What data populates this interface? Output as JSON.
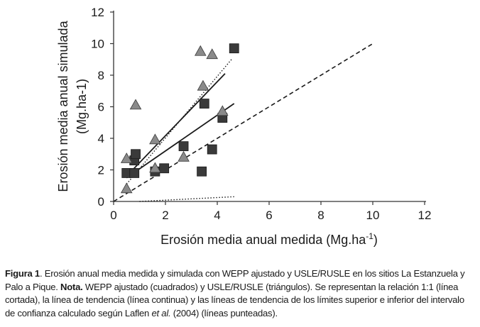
{
  "chart_data": {
    "type": "scatter",
    "title": "",
    "xlabel": "Erosión media anual medida (Mg.ha",
    "xlabel_sup": "-1",
    "xlabel_end": ")",
    "ylabel_line1": "Erosión media anual simulada",
    "ylabel_line2": "(Mg.ha-1)",
    "xlim": [
      0,
      12
    ],
    "ylim": [
      0,
      12
    ],
    "xticks": [
      "0",
      "2",
      "4",
      "6",
      "8",
      "10",
      "12"
    ],
    "yticks": [
      "0",
      "2",
      "4",
      "6",
      "8",
      "10",
      "12"
    ],
    "grid": false,
    "series": [
      {
        "name": "WEPP ajustado (cuadrados)",
        "marker": "square",
        "color": "#3a3a3a",
        "points": [
          [
            0.5,
            1.8
          ],
          [
            0.8,
            1.8
          ],
          [
            0.8,
            2.6
          ],
          [
            0.85,
            3.0
          ],
          [
            1.6,
            1.9
          ],
          [
            1.95,
            2.1
          ],
          [
            2.7,
            3.5
          ],
          [
            3.4,
            1.9
          ],
          [
            3.5,
            6.2
          ],
          [
            3.8,
            3.3
          ],
          [
            4.2,
            5.3
          ],
          [
            4.65,
            9.7
          ]
        ]
      },
      {
        "name": "USLE/RUSLE (triángulos)",
        "marker": "triangle",
        "color": "#8a8a8a",
        "points": [
          [
            0.5,
            0.8
          ],
          [
            0.5,
            2.7
          ],
          [
            0.85,
            6.1
          ],
          [
            1.6,
            2.1
          ],
          [
            1.6,
            3.9
          ],
          [
            2.7,
            2.8
          ],
          [
            3.35,
            9.5
          ],
          [
            3.45,
            7.3
          ],
          [
            3.8,
            9.3
          ],
          [
            4.2,
            5.7
          ]
        ]
      }
    ],
    "reference_lines": [
      {
        "name": "relación 1:1 (línea cortada)",
        "style": "dashed",
        "x": [
          0,
          10
        ],
        "y": [
          0,
          10
        ]
      },
      {
        "name": "línea de tendencia WEPP (línea continua)",
        "style": "solid",
        "x": [
          0.5,
          4.65
        ],
        "y": [
          1.5,
          6.2
        ]
      },
      {
        "name": "línea de tendencia USLE/RUSLE (línea continua)",
        "style": "solid",
        "x": [
          0.5,
          4.3
        ],
        "y": [
          1.6,
          8.1
        ]
      },
      {
        "name": "límite superior intervalo de confianza (línea punteada)",
        "style": "dotted",
        "x": [
          0.5,
          4.55
        ],
        "y": [
          1.1,
          9.0
        ]
      },
      {
        "name": "límite inferior intervalo de confianza (línea punteada)",
        "style": "dotted",
        "x": [
          1.0,
          4.65
        ],
        "y": [
          0.0,
          0.3
        ]
      }
    ]
  },
  "caption": {
    "figure_label": "Figura 1",
    "text_1": ". Erosión anual media medida y simulada con WEPP ajustado y USLE/RUSLE en los sitios La Estanzuela y Palo a Pique. ",
    "nota_label": "Nota.",
    "text_2": " WEPP ajustado (cuadrados) y USLE/RUSLE (triángulos). Se representan la relación 1:1 (línea cortada), la línea de tendencia (línea continua) y las líneas de tendencia de los límites superior e inferior del intervalo de confianza calculado según Laflen ",
    "et_al": "et al.",
    "text_3": " (2004) (líneas punteadas)."
  }
}
